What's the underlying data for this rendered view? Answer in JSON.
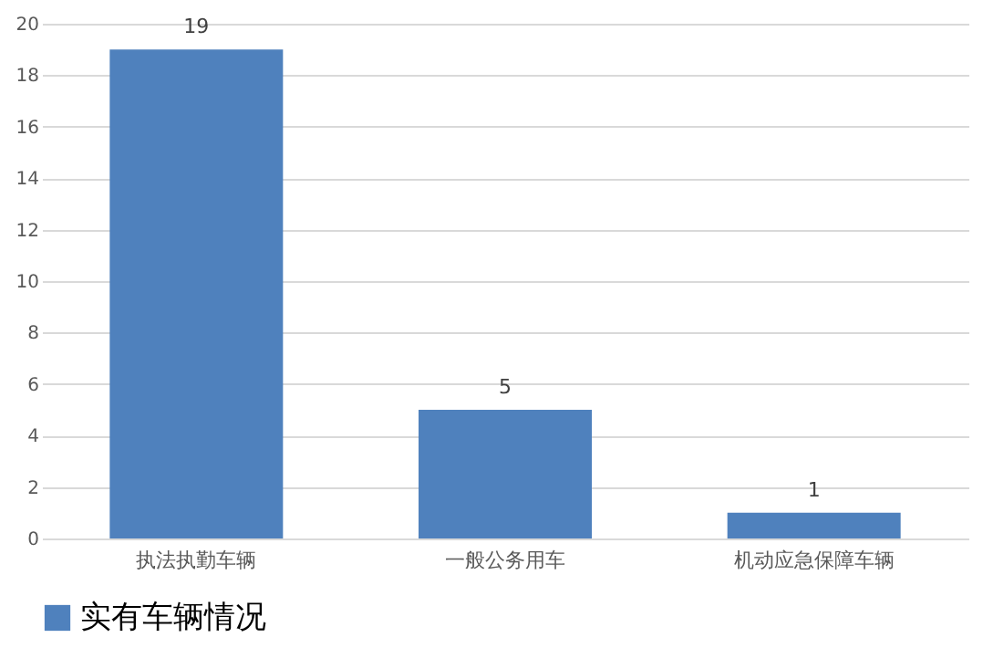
{
  "chart_data": {
    "type": "bar",
    "categories": [
      "执法执勤车辆",
      "一般公务用车",
      "机动应急保障车辆"
    ],
    "series": [
      {
        "name": "实有车辆情况",
        "color": "#4f81bd",
        "values": [
          19,
          5,
          1
        ]
      }
    ],
    "ylim": [
      0,
      20
    ],
    "yticks": [
      0,
      2,
      4,
      6,
      8,
      10,
      12,
      14,
      16,
      18,
      20
    ],
    "grid": "y",
    "legend": "bottom",
    "data_labels": true
  }
}
